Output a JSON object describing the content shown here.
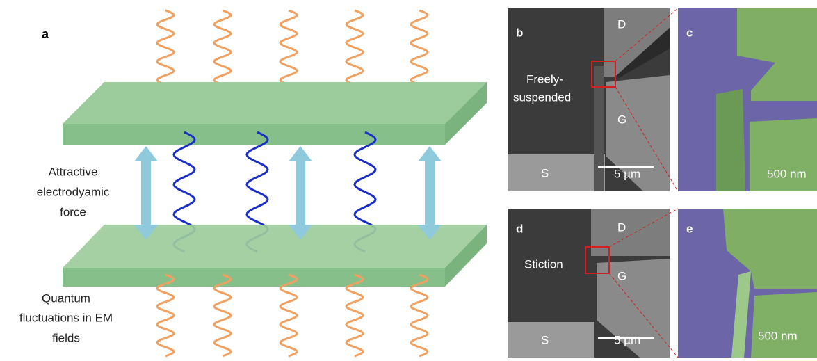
{
  "panel_a": {
    "label": "a",
    "force_label": [
      "Attractive",
      "electrodyamic",
      "force"
    ],
    "fluctuation_label": [
      "Quantum",
      "fluctuations in EM",
      "fields"
    ]
  },
  "panel_b": {
    "label": "b",
    "drain": "D",
    "gate": "G",
    "source": "S",
    "state": [
      "Freely-",
      "suspended"
    ],
    "scale_bar": "5 µm"
  },
  "panel_c": {
    "label": "c",
    "scale_bar": "500 nm"
  },
  "panel_d": {
    "label": "d",
    "drain": "D",
    "gate": "G",
    "source": "S",
    "state": [
      "Stiction"
    ],
    "scale_bar": "5 µm"
  },
  "panel_e": {
    "label": "e",
    "scale_bar": "500 nm"
  }
}
